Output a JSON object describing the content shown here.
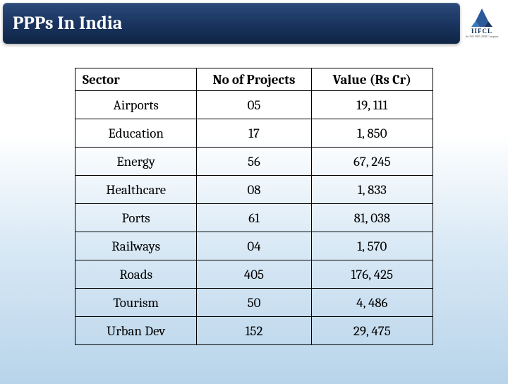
{
  "title": "PPPs In  India",
  "logo": {
    "letters": "IIFCL",
    "sub": "An ISO 9001:2008 Company",
    "tri_color_1": "#2a5a9a",
    "tri_color_2": "#3a7aba",
    "tri_color_3": "#1a3560"
  },
  "table": {
    "headers": {
      "sector": "Sector",
      "projects": "No of Projects",
      "value": "Value (Rs Cr)"
    },
    "rows": [
      {
        "sector": "Airports",
        "projects": "05",
        "value": "19, 111"
      },
      {
        "sector": "Education",
        "projects": "17",
        "value": "1, 850"
      },
      {
        "sector": "Energy",
        "projects": "56",
        "value": "67, 245"
      },
      {
        "sector": "Healthcare",
        "projects": "08",
        "value": "1, 833"
      },
      {
        "sector": "Ports",
        "projects": "61",
        "value": "81, 038"
      },
      {
        "sector": "Railways",
        "projects": "04",
        "value": "1, 570"
      },
      {
        "sector": "Roads",
        "projects": "405",
        "value": "176, 425"
      },
      {
        "sector": "Tourism",
        "projects": "50",
        "value": "4, 486"
      },
      {
        "sector": "Urban Dev",
        "projects": "152",
        "value": "29, 475"
      }
    ],
    "style": {
      "border_color": "#000000",
      "header_fontsize": 19,
      "cell_fontsize": 19,
      "font_family": "Cambria"
    }
  },
  "background": {
    "gradient_top": "#ffffff",
    "gradient_bottom": "#b8d4ea"
  }
}
